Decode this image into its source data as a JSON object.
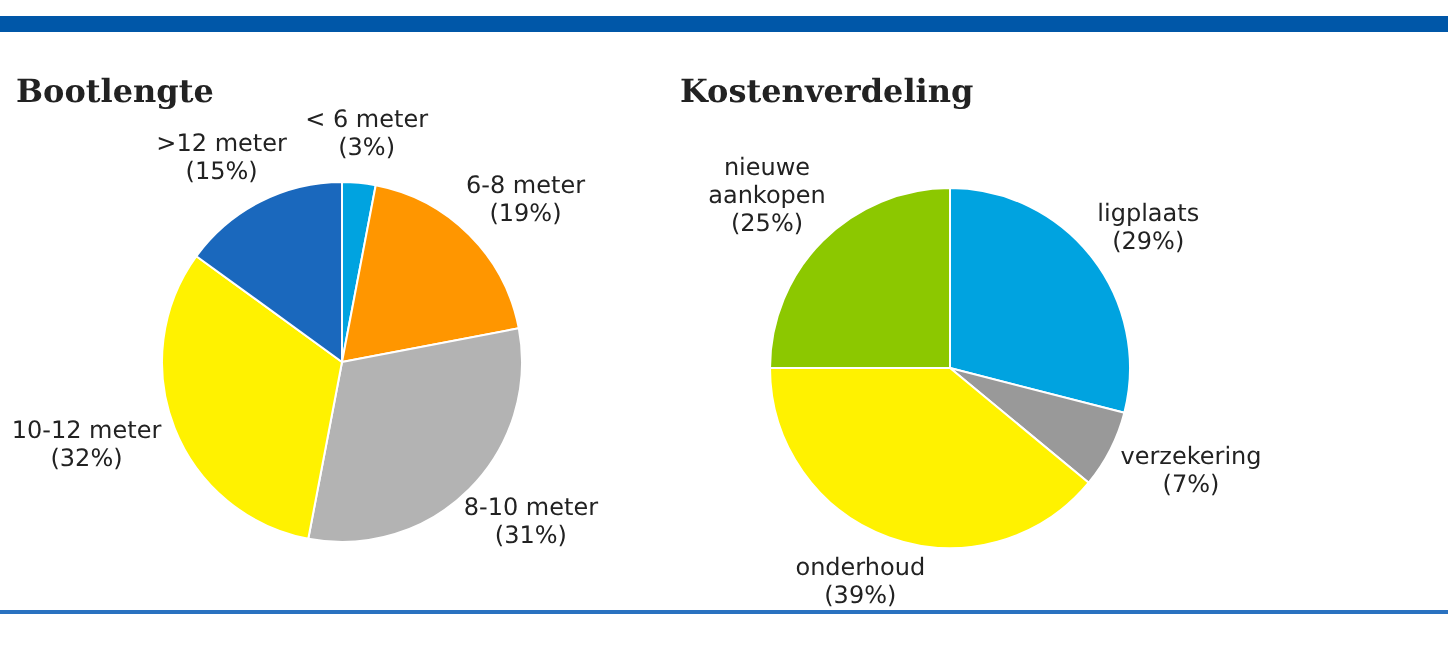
{
  "chart_data": [
    {
      "type": "pie",
      "title": "Bootlengte",
      "categories": [
        "< 6 meter",
        "6-8 meter",
        "8-10 meter",
        "10-12 meter",
        ">12 meter"
      ],
      "values": [
        3,
        19,
        31,
        32,
        15
      ],
      "value_labels": [
        "(3%)",
        "(19%)",
        "(31%)",
        "(32%)",
        "(15%)"
      ],
      "colors": [
        "#00a3e0",
        "#ff9600",
        "#b3b3b3",
        "#fff200",
        "#1a68bd"
      ],
      "legend": false
    },
    {
      "type": "pie",
      "title": "Kostenverdeling",
      "categories": [
        "ligplaats",
        "verzekering",
        "onderhoud",
        "nieuwe aankopen"
      ],
      "values": [
        29,
        7,
        39,
        25
      ],
      "value_labels": [
        "(29%)",
        "(7%)",
        "(39%)",
        "(25%)"
      ],
      "colors": [
        "#00a3e0",
        "#999999",
        "#fff200",
        "#8cc800"
      ],
      "legend": false
    }
  ]
}
